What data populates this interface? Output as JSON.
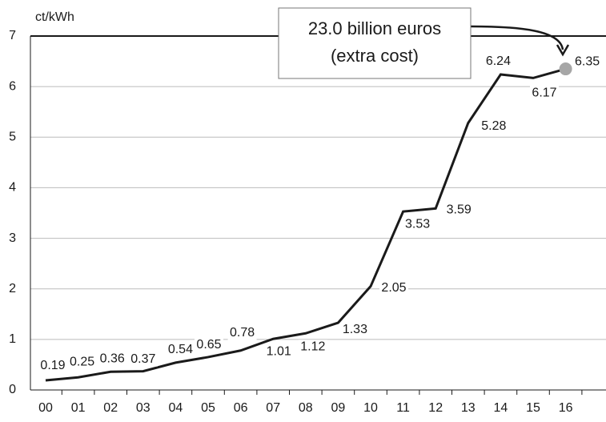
{
  "chart_data": {
    "type": "line",
    "y_label": "ct/kWh",
    "annotation": [
      "23.0 billion euros",
      "(extra cost)"
    ],
    "categories": [
      "00",
      "01",
      "02",
      "03",
      "04",
      "05",
      "06",
      "07",
      "08",
      "09",
      "10",
      "11",
      "12",
      "13",
      "14",
      "15",
      "16"
    ],
    "series": [
      {
        "color": "#1a1a1a",
        "values": [
          0.19,
          0.25,
          0.36,
          0.37,
          0.54,
          0.65,
          0.78,
          1.01,
          1.12,
          1.33,
          2.05,
          3.53,
          3.59,
          5.28,
          6.24,
          6.17,
          6.35
        ]
      }
    ],
    "highlight_color": "#a6a6a6",
    "ylim": [
      0,
      7
    ],
    "yticks": [
      0,
      1,
      2,
      3,
      4,
      5,
      6,
      7
    ],
    "grid": true
  }
}
